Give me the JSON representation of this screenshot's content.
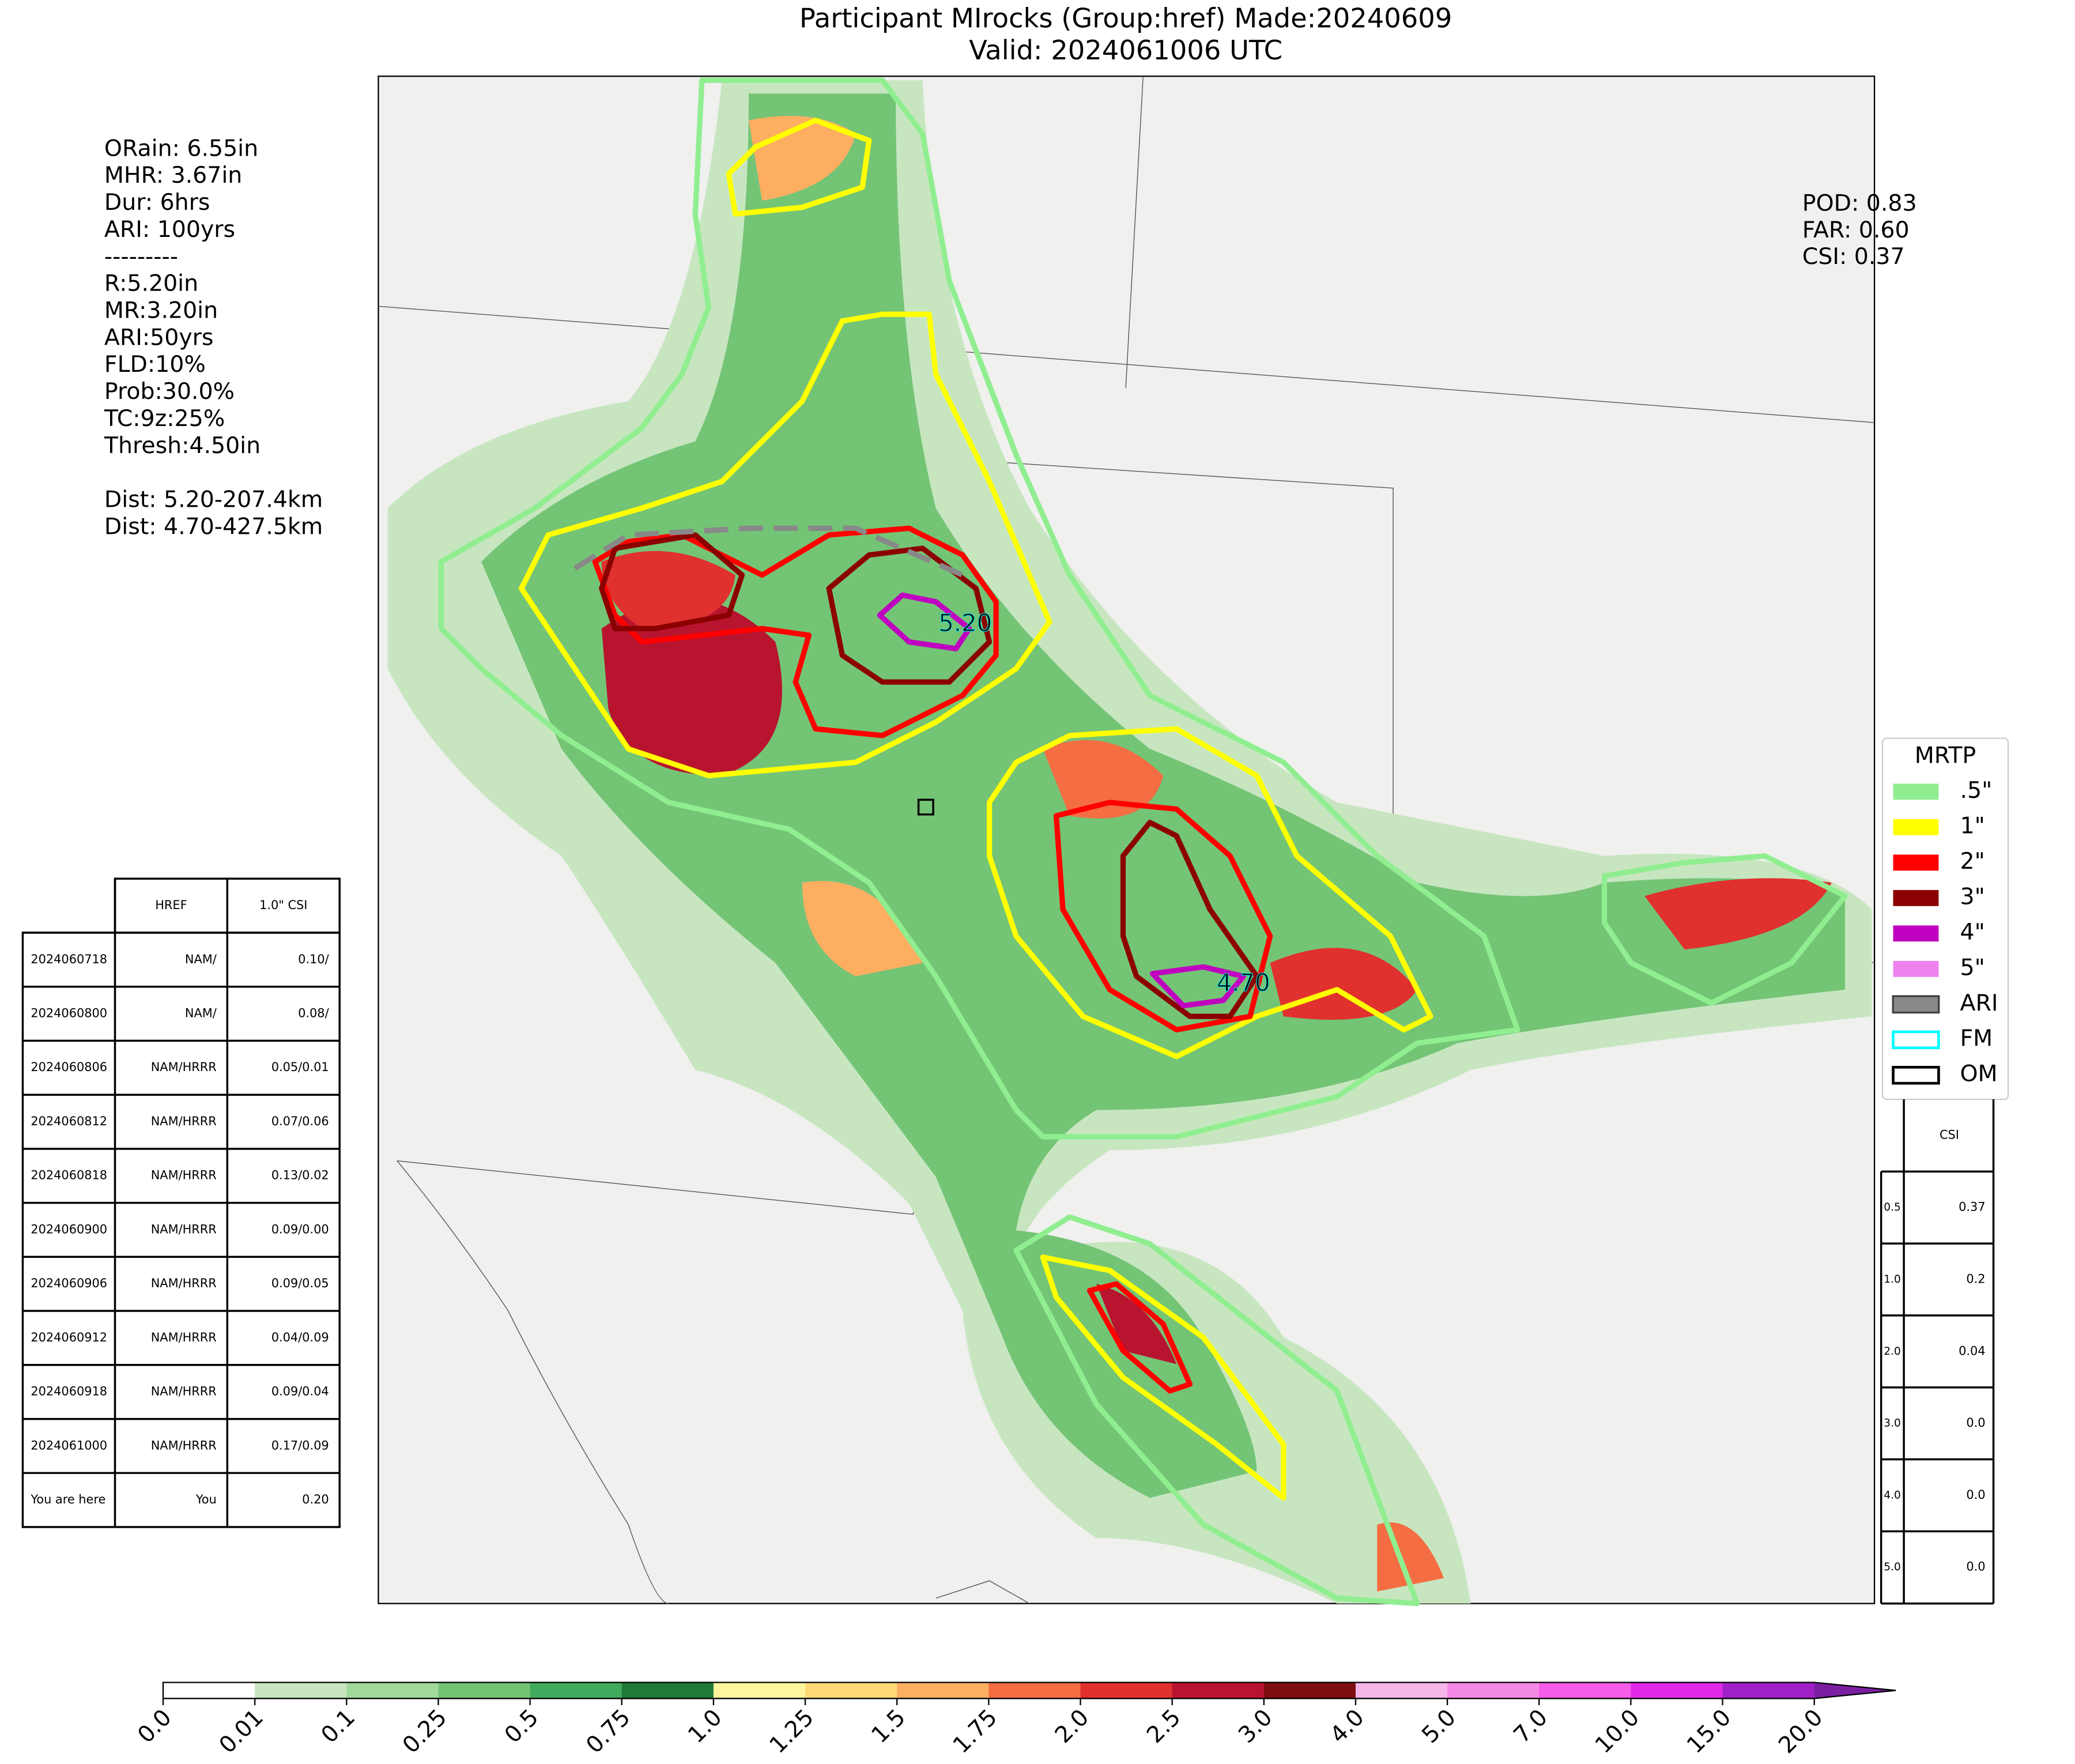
{
  "title": [
    "Participant MIrocks (Group:href) Made:20240609",
    "Valid: 2024061006 UTC"
  ],
  "info_lines": [
    "ORain: 6.55in",
    "MHR: 3.67in",
    "Dur: 6hrs",
    "ARI: 100yrs",
    "---------",
    "R:5.20in",
    "MR:3.20in",
    "ARI:50yrs",
    "FLD:10%",
    "Prob:30.0%",
    "TC:9z:25%",
    "Thresh:4.50in",
    "",
    "Dist: 5.20-207.4km",
    "Dist: 4.70-427.5km"
  ],
  "scores": [
    "POD: 0.83",
    "FAR: 0.60",
    "CSI: 0.37"
  ],
  "map_labels": [
    "5.20",
    "4.70"
  ],
  "legend": {
    "title": "MRTP",
    "items": [
      {
        "label": ".5\"",
        "color": "#90ee90"
      },
      {
        "label": "1\"",
        "color": "#ffff00"
      },
      {
        "label": "2\"",
        "color": "#ff0000"
      },
      {
        "label": "3\"",
        "color": "#8b0000"
      },
      {
        "label": "4\"",
        "color": "#c000c0"
      },
      {
        "label": "5\"",
        "color": "#ee82ee"
      },
      {
        "label": "ARI",
        "color": "#888888"
      },
      {
        "label": "FM",
        "color": "#00ffff"
      },
      {
        "label": "OM",
        "color": "#000000"
      }
    ]
  },
  "left_table": {
    "header": [
      "HREF",
      "1.0\" CSI"
    ],
    "rows": [
      [
        "2024060718",
        "NAM/",
        "0.10/"
      ],
      [
        "2024060800",
        "NAM/",
        "0.08/"
      ],
      [
        "2024060806",
        "NAM/HRRR",
        "0.05/0.01"
      ],
      [
        "2024060812",
        "NAM/HRRR",
        "0.07/0.06"
      ],
      [
        "2024060818",
        "NAM/HRRR",
        "0.13/0.02"
      ],
      [
        "2024060900",
        "NAM/HRRR",
        "0.09/0.00"
      ],
      [
        "2024060906",
        "NAM/HRRR",
        "0.09/0.05"
      ],
      [
        "2024060912",
        "NAM/HRRR",
        "0.04/0.09"
      ],
      [
        "2024060918",
        "NAM/HRRR",
        "0.09/0.04"
      ],
      [
        "2024061000",
        "NAM/HRRR",
        "0.17/0.09"
      ],
      [
        "You are here",
        "You",
        "0.20"
      ]
    ]
  },
  "right_table": {
    "header": "CSI",
    "rows": [
      [
        "0.5",
        "0.37"
      ],
      [
        "1.0",
        "0.2"
      ],
      [
        "2.0",
        "0.04"
      ],
      [
        "3.0",
        "0.0"
      ],
      [
        "4.0",
        "0.0"
      ],
      [
        "5.0",
        "0.0"
      ]
    ]
  },
  "colorbar": {
    "labels": [
      "0.0",
      "0.01",
      "0.1",
      "0.25",
      "0.5",
      "0.75",
      "1.0",
      "1.25",
      "1.5",
      "1.75",
      "2.0",
      "2.5",
      "3.0",
      "4.0",
      "5.0",
      "7.0",
      "10.0",
      "15.0",
      "20.0"
    ],
    "colors": [
      "#ffffff",
      "#c7e6c0",
      "#a1d99b",
      "#74c476",
      "#41ab5d",
      "#1f7a3a",
      "#fff59d",
      "#fed976",
      "#fdae61",
      "#f46d43",
      "#e0312e",
      "#b8142f",
      "#7f0f0f",
      "#f7b6e8",
      "#f58ae6",
      "#f55ce8",
      "#e02ae8",
      "#a020c8"
    ],
    "extend_color": "#7b1fa2"
  }
}
